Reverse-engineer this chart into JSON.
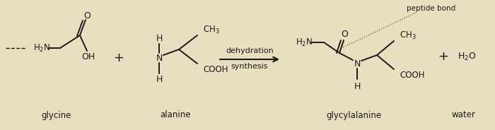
{
  "bg_color": "#e8dfc0",
  "text_color": "#1a1a1a",
  "line_color": "#1a1a1a",
  "dot_color": "#555544",
  "figsize": [
    7.0,
    1.84
  ],
  "dpi": 100,
  "glycine_label": "glycine",
  "alanine_label": "alanine",
  "glycylalanine_label": "glycylalanine",
  "water_label": "water",
  "dehydration_label": "dehydration",
  "synthesis_label": "synthesis",
  "peptide_bond_label": "peptide bond"
}
